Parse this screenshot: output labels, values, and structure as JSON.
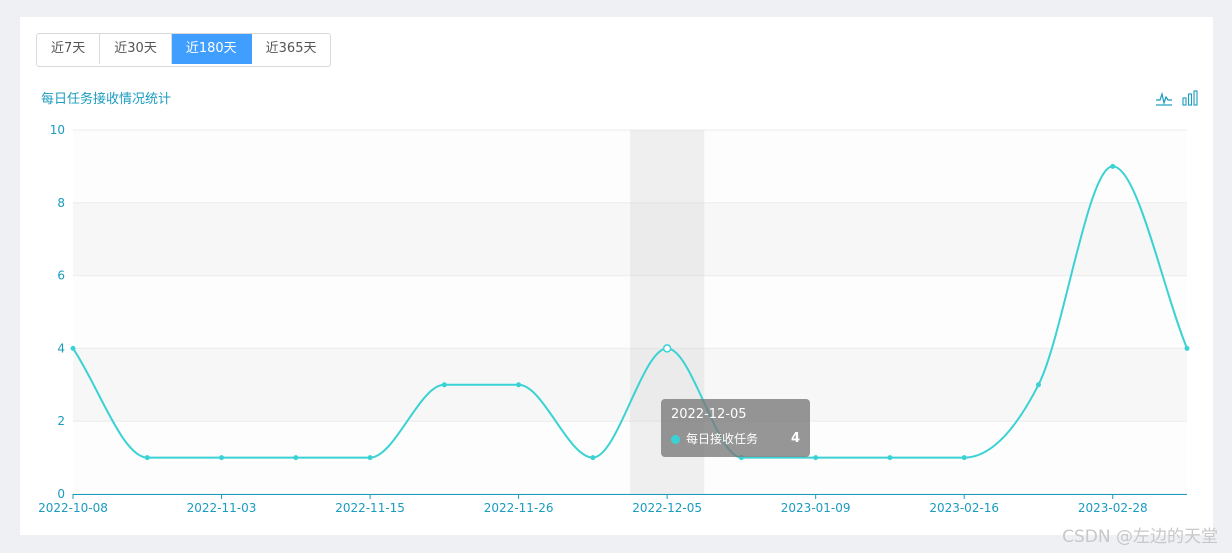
{
  "range_buttons": [
    {
      "label": "近7天",
      "active": false
    },
    {
      "label": "近30天",
      "active": false
    },
    {
      "label": "近180天",
      "active": true
    },
    {
      "label": "近365天",
      "active": false
    }
  ],
  "toolbox": {
    "icons": [
      "line-chart-icon",
      "bar-chart-icon"
    ]
  },
  "colors": {
    "line": "#3ad2d4",
    "axis": "#1a9bc0",
    "active_button": "#409eff"
  },
  "tooltip": {
    "date": "2022-12-05",
    "series_label": "每日接收任务",
    "value": "4"
  },
  "watermark": "CSDN @左边的天堂",
  "chart_data": {
    "type": "line",
    "title": "每日任务接收情况统计",
    "series": [
      {
        "name": "每日接收任务",
        "values": [
          4,
          1,
          1,
          1,
          1,
          3,
          3,
          1,
          4,
          1,
          1,
          1,
          1,
          3,
          9,
          4
        ]
      }
    ],
    "x_tick_labels": [
      "2022-10-08",
      "2022-11-03",
      "2022-11-15",
      "2022-11-26",
      "2022-12-05",
      "2023-01-09",
      "2023-02-16",
      "2023-02-28"
    ],
    "x_tick_index": [
      0,
      2,
      4,
      6,
      8,
      10,
      12,
      14
    ],
    "ylim": [
      0,
      10
    ],
    "y_ticks": [
      0,
      2,
      4,
      6,
      8,
      10
    ],
    "highlight_index": 8,
    "grid": true,
    "smooth": true
  }
}
